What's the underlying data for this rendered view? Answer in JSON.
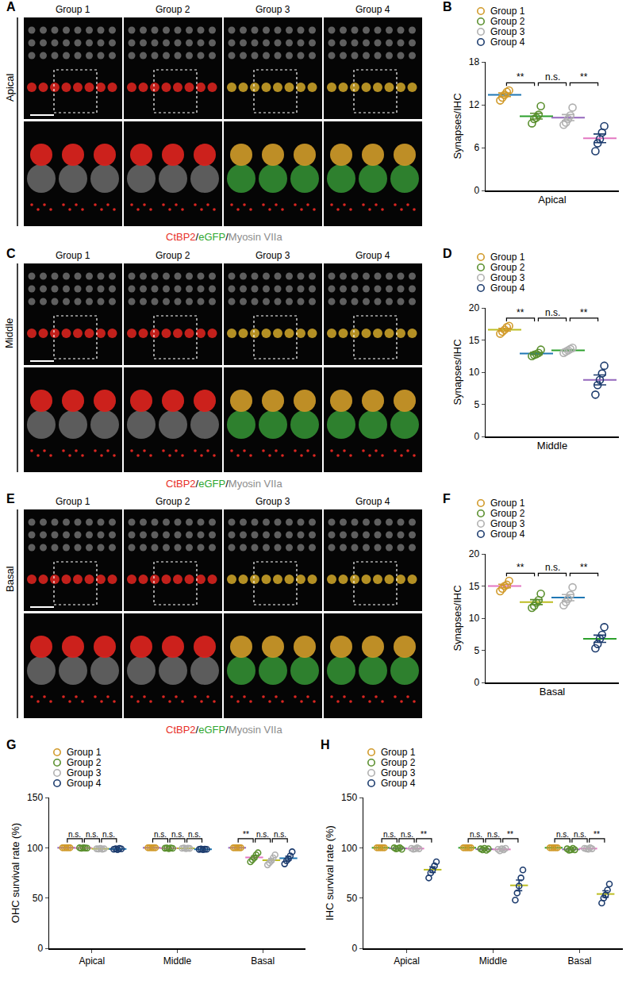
{
  "panels": [
    {
      "panel": "A",
      "region": "Apical",
      "groups": [
        "Group 1",
        "Group 2",
        "Group 3",
        "Group 4"
      ],
      "caption": [
        {
          "text": "CtBP2",
          "color": "#e8312a"
        },
        {
          "text": "/",
          "color": "#000000"
        },
        {
          "text": "eGFP",
          "color": "#2fa82f"
        },
        {
          "text": "/",
          "color": "#000000"
        },
        {
          "text": "Myosin VIIa",
          "color": "#8c8c8c"
        }
      ]
    },
    {
      "panel": "C",
      "region": "Middle",
      "groups": [
        "Group 1",
        "Group 2",
        "Group 3",
        "Group 4"
      ],
      "caption": [
        {
          "text": "CtBP2",
          "color": "#e8312a"
        },
        {
          "text": "/",
          "color": "#000000"
        },
        {
          "text": "eGFP",
          "color": "#2fa82f"
        },
        {
          "text": "/",
          "color": "#000000"
        },
        {
          "text": "Myosin VIIa",
          "color": "#8c8c8c"
        }
      ]
    },
    {
      "panel": "E",
      "region": "Basal",
      "groups": [
        "Group 1",
        "Group 2",
        "Group 3",
        "Group 4"
      ],
      "caption": [
        {
          "text": "CtBP2",
          "color": "#e8312a"
        },
        {
          "text": "/",
          "color": "#000000"
        },
        {
          "text": "eGFP",
          "color": "#2fa82f"
        },
        {
          "text": "/",
          "color": "#000000"
        },
        {
          "text": "Myosin VIIa",
          "color": "#8c8c8c"
        }
      ]
    }
  ],
  "chart_data": [
    {
      "type": "scatter",
      "panel": "B",
      "x_label": "Apical",
      "y_label": "Synapses/IHC",
      "ylim": [
        0,
        18
      ],
      "yticks": [
        0,
        6,
        12,
        18
      ],
      "grid": false,
      "legend": "top left",
      "tick_labels": "y",
      "marker": "circle-open",
      "series": [
        {
          "name": "Group 1",
          "color": "#d19a2a",
          "values": [
            12.6,
            13,
            13.4,
            13.8,
            14
          ],
          "mean": 13.4,
          "error": 0.25
        },
        {
          "name": "Group 2",
          "color": "#5a8f2e",
          "values": [
            9.4,
            10,
            10.2,
            10.6,
            11.8
          ],
          "mean": 10.4,
          "error": 0.4
        },
        {
          "name": "Group 3",
          "color": "#b0b0b0",
          "values": [
            9.2,
            9.5,
            10,
            10.5,
            11.6
          ],
          "mean": 10.2,
          "error": 0.42
        },
        {
          "name": "Group 4",
          "color": "#1d3c6e",
          "values": [
            5.5,
            6.6,
            7.2,
            8.1,
            9.0
          ],
          "mean": 7.3,
          "error": 0.6
        }
      ],
      "brackets": [
        {
          "from": "Group 1",
          "to": "Group 2",
          "label": "**"
        },
        {
          "from": "Group 2",
          "to": "Group 3",
          "label": "n.s."
        },
        {
          "from": "Group 3",
          "to": "Group 4",
          "label": "**"
        }
      ]
    },
    {
      "type": "scatter",
      "panel": "D",
      "x_label": "Middle",
      "y_label": "Synapses/IHC",
      "ylim": [
        0,
        20
      ],
      "yticks": [
        0,
        5,
        10,
        15,
        20
      ],
      "grid": false,
      "legend": "top left",
      "tick_labels": "y",
      "marker": "circle-open",
      "series": [
        {
          "name": "Group 1",
          "color": "#d19a2a",
          "values": [
            16,
            16.3,
            16.6,
            17,
            17.2
          ],
          "mean": 16.6,
          "error": 0.22
        },
        {
          "name": "Group 2",
          "color": "#5a8f2e",
          "values": [
            12.5,
            12.7,
            12.8,
            13,
            13.5
          ],
          "mean": 12.9,
          "error": 0.17
        },
        {
          "name": "Group 3",
          "color": "#b0b0b0",
          "values": [
            13,
            13.2,
            13.4,
            13.6,
            13.8
          ],
          "mean": 13.4,
          "error": 0.14
        },
        {
          "name": "Group 4",
          "color": "#1d3c6e",
          "values": [
            6.5,
            8,
            8.8,
            9.8,
            11
          ],
          "mean": 8.8,
          "error": 0.77
        }
      ],
      "brackets": [
        {
          "from": "Group 1",
          "to": "Group 2",
          "label": "**"
        },
        {
          "from": "Group 2",
          "to": "Group 3",
          "label": "n.s."
        },
        {
          "from": "Group 3",
          "to": "Group 4",
          "label": "**"
        }
      ]
    },
    {
      "type": "scatter",
      "panel": "F",
      "x_label": "Basal",
      "y_label": "Synapses/IHC",
      "ylim": [
        0,
        20
      ],
      "yticks": [
        0,
        5,
        10,
        15,
        20
      ],
      "grid": false,
      "legend": "top left",
      "tick_labels": "y",
      "marker": "circle-open",
      "series": [
        {
          "name": "Group 1",
          "color": "#d19a2a",
          "values": [
            14.2,
            14.6,
            15,
            15.2,
            15.8
          ],
          "mean": 15.0,
          "error": 0.27
        },
        {
          "name": "Group 2",
          "color": "#5a8f2e",
          "values": [
            11.6,
            11.9,
            12.4,
            12.8,
            13.8
          ],
          "mean": 12.5,
          "error": 0.38
        },
        {
          "name": "Group 3",
          "color": "#b0b0b0",
          "values": [
            12,
            12.5,
            13,
            13.6,
            14.8
          ],
          "mean": 13.2,
          "error": 0.48
        },
        {
          "name": "Group 4",
          "color": "#1d3c6e",
          "values": [
            5.3,
            6,
            6.8,
            7.4,
            8.6
          ],
          "mean": 6.8,
          "error": 0.56
        }
      ],
      "brackets": [
        {
          "from": "Group 1",
          "to": "Group 2",
          "label": "**"
        },
        {
          "from": "Group 2",
          "to": "Group 3",
          "label": "n.s."
        },
        {
          "from": "Group 3",
          "to": "Group 4",
          "label": "**"
        }
      ]
    },
    {
      "type": "scatter",
      "panel": "G",
      "y_label": "OHC survival rate (%)",
      "categories": [
        "Apical",
        "Middle",
        "Basal"
      ],
      "ylim": [
        0,
        150
      ],
      "yticks": [
        0,
        50,
        100,
        150
      ],
      "grid": false,
      "legend": "top left",
      "marker": "circle-open",
      "series": [
        {
          "name": "Group 1",
          "color": "#d19a2a",
          "values": [
            [
              100,
              100,
              100,
              100,
              100
            ],
            [
              100,
              100,
              100,
              100,
              100
            ],
            [
              100,
              100,
              100,
              100,
              100
            ]
          ],
          "means": [
            100,
            100,
            100
          ],
          "errors": [
            0,
            0,
            0
          ]
        },
        {
          "name": "Group 2",
          "color": "#5a8f2e",
          "values": [
            [
              100,
              99.5,
              100,
              99.8,
              99.7
            ],
            [
              99.6,
              99.8,
              99.2,
              99.9,
              99.5
            ],
            [
              86,
              88,
              90,
              93,
              95
            ]
          ],
          "means": [
            99.8,
            99.6,
            90.4
          ],
          "errors": [
            0.1,
            0.1,
            1.6
          ]
        },
        {
          "name": "Group 3",
          "color": "#b0b0b0",
          "values": [
            [
              99,
              98.8,
              99.5,
              98.6,
              99.1
            ],
            [
              99.5,
              99.8,
              99.2,
              99.6,
              99.4
            ],
            [
              83,
              85,
              87,
              90,
              93
            ]
          ],
          "means": [
            99.0,
            99.5,
            87.6
          ],
          "errors": [
            0.2,
            0.1,
            1.8
          ]
        },
        {
          "name": "Group 4",
          "color": "#1d3c6e",
          "values": [
            [
              98.5,
              99,
              98.2,
              99.4,
              98.9
            ],
            [
              98.4,
              98.8,
              98.2,
              98.6,
              98.5
            ],
            [
              84,
              87,
              89,
              92,
              96
            ]
          ],
          "means": [
            98.8,
            98.5,
            89.6
          ],
          "errors": [
            0.2,
            0.1,
            2.0
          ]
        }
      ],
      "brackets": [
        {
          "category": "Apical",
          "from": "Group 1",
          "to": "Group 2",
          "label": "n.s."
        },
        {
          "category": "Apical",
          "from": "Group 2",
          "to": "Group 3",
          "label": "n.s."
        },
        {
          "category": "Apical",
          "from": "Group 3",
          "to": "Group 4",
          "label": "n.s."
        },
        {
          "category": "Middle",
          "from": "Group 1",
          "to": "Group 2",
          "label": "n.s."
        },
        {
          "category": "Middle",
          "from": "Group 2",
          "to": "Group 3",
          "label": "n.s."
        },
        {
          "category": "Middle",
          "from": "Group 3",
          "to": "Group 4",
          "label": "n.s."
        },
        {
          "category": "Basal",
          "from": "Group 1",
          "to": "Group 2",
          "label": "**"
        },
        {
          "category": "Basal",
          "from": "Group 2",
          "to": "Group 3",
          "label": "n.s."
        },
        {
          "category": "Basal",
          "from": "Group 3",
          "to": "Group 4",
          "label": "n.s."
        }
      ]
    },
    {
      "type": "scatter",
      "panel": "H",
      "y_label": "IHC survival rate (%)",
      "categories": [
        "Apical",
        "Middle",
        "Basal"
      ],
      "ylim": [
        0,
        150
      ],
      "yticks": [
        0,
        50,
        100,
        150
      ],
      "grid": false,
      "legend": "top left",
      "marker": "circle-open",
      "series": [
        {
          "name": "Group 1",
          "color": "#d19a2a",
          "values": [
            [
              100,
              100,
              100,
              100,
              100
            ],
            [
              100,
              100,
              100,
              100,
              100
            ],
            [
              100,
              100,
              100,
              100,
              100
            ]
          ],
          "means": [
            100,
            100,
            100
          ],
          "errors": [
            0,
            0,
            0
          ]
        },
        {
          "name": "Group 2",
          "color": "#5a8f2e",
          "values": [
            [
              100,
              99,
              99.5,
              100,
              98.5
            ],
            [
              99,
              98,
              99.5,
              97.5,
              99
            ],
            [
              99,
              97.5,
              98,
              99.5,
              98
            ]
          ],
          "means": [
            99.4,
            98.6,
            98.4
          ],
          "errors": [
            0.3,
            0.4,
            0.4
          ]
        },
        {
          "name": "Group 3",
          "color": "#b0b0b0",
          "values": [
            [
              99.5,
              98.5,
              99,
              100,
              99
            ],
            [
              98.5,
              97,
              99,
              98,
              99.5
            ],
            [
              99.5,
              99,
              98.5,
              100,
              99
            ]
          ],
          "means": [
            99.2,
            98.4,
            99.2
          ],
          "errors": [
            0.3,
            0.4,
            0.3
          ]
        },
        {
          "name": "Group 4",
          "color": "#1d3c6e",
          "values": [
            [
              70,
              75,
              78,
              82,
              86
            ],
            [
              48,
              55,
              62,
              70,
              78
            ],
            [
              45,
              50,
              53,
              58,
              64
            ]
          ],
          "means": [
            78.2,
            62.6,
            54.0
          ],
          "errors": [
            2.8,
            5.3,
            3.2
          ]
        }
      ],
      "brackets": [
        {
          "category": "Apical",
          "from": "Group 1",
          "to": "Group 2",
          "label": "n.s."
        },
        {
          "category": "Apical",
          "from": "Group 2",
          "to": "Group 3",
          "label": "n.s."
        },
        {
          "category": "Apical",
          "from": "Group 3",
          "to": "Group 4",
          "label": "**"
        },
        {
          "category": "Middle",
          "from": "Group 1",
          "to": "Group 2",
          "label": "n.s."
        },
        {
          "category": "Middle",
          "from": "Group 2",
          "to": "Group 3",
          "label": "n.s."
        },
        {
          "category": "Middle",
          "from": "Group 3",
          "to": "Group 4",
          "label": "**"
        },
        {
          "category": "Basal",
          "from": "Group 1",
          "to": "Group 2",
          "label": "n.s."
        },
        {
          "category": "Basal",
          "from": "Group 2",
          "to": "Group 3",
          "label": "n.s."
        },
        {
          "category": "Basal",
          "from": "Group 3",
          "to": "Group 4",
          "label": "**"
        }
      ]
    }
  ]
}
